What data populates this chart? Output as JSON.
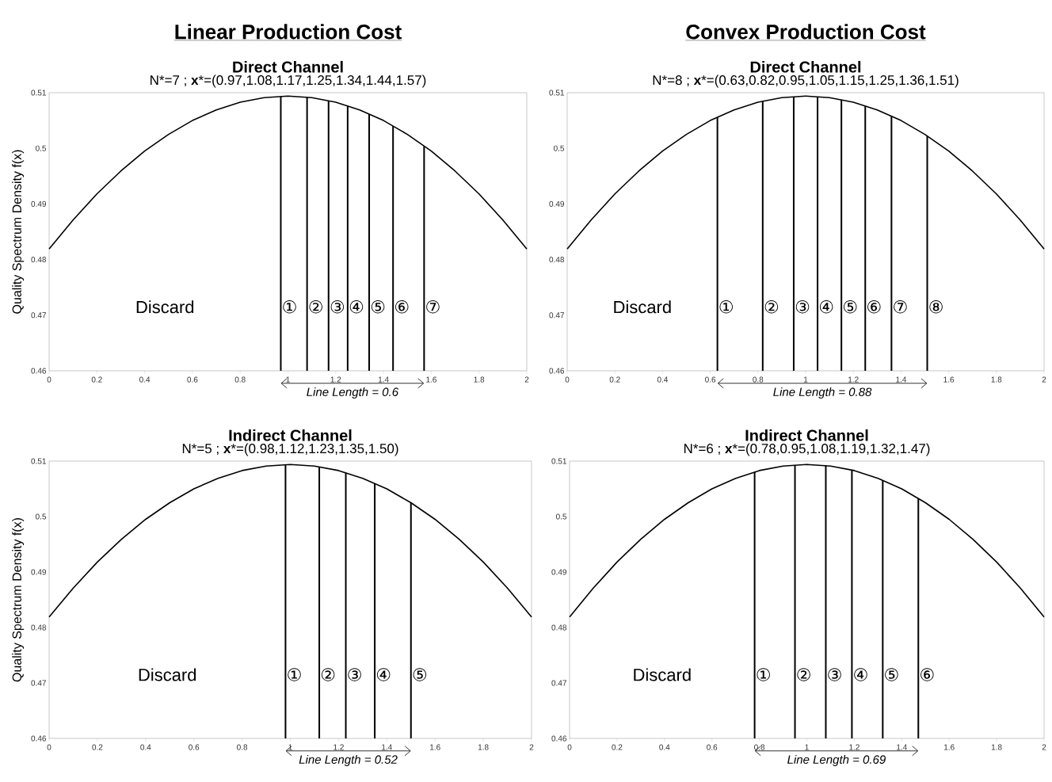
{
  "chart_data": [
    {
      "type": "line",
      "title": "Direct Channel",
      "subtitle": "N*=7 ; **x***=(0.97,1.08,1.17,1.25,1.34,1.44,1.57)",
      "ylabel": "Quality Spectrum Density f(x)",
      "x": [
        0,
        0.1,
        0.2,
        0.3,
        0.4,
        0.5,
        0.6,
        0.7,
        0.8,
        0.9,
        1,
        1.1,
        1.2,
        1.3,
        1.4,
        1.5,
        1.6,
        1.7,
        1.8,
        1.9,
        2
      ],
      "values": [
        0.4819,
        0.4871,
        0.4918,
        0.4959,
        0.4995,
        0.5025,
        0.505,
        0.5069,
        0.5083,
        0.5091,
        0.5094,
        0.5091,
        0.5083,
        0.5069,
        0.505,
        0.5025,
        0.4995,
        0.4959,
        0.4918,
        0.4871,
        0.4819
      ],
      "color": "#000000",
      "xlim": [
        0,
        2
      ],
      "ylim": [
        0.46,
        0.51
      ],
      "xticks": [
        0,
        0.2,
        0.4,
        0.6,
        0.8,
        1,
        1.2,
        1.4,
        1.6,
        1.8,
        2
      ],
      "yticks": [
        0.46,
        0.47,
        0.48,
        0.49,
        0.5,
        0.51
      ],
      "ref_lines": [
        {
          "axis": "x",
          "value": 0.97,
          "label": "①"
        },
        {
          "axis": "x",
          "value": 1.08,
          "label": "②"
        },
        {
          "axis": "x",
          "value": 1.17,
          "label": "③"
        },
        {
          "axis": "x",
          "value": 1.25,
          "label": "④"
        },
        {
          "axis": "x",
          "value": 1.34,
          "label": "⑤"
        },
        {
          "axis": "x",
          "value": 1.44,
          "label": "⑥"
        },
        {
          "axis": "x",
          "value": 1.57,
          "label": "⑦"
        }
      ],
      "annotations": [
        "Linear Production Cost",
        "Discard",
        "Line Length = 0.6"
      ]
    },
    {
      "type": "line",
      "title": "Direct Channel",
      "subtitle": "N*=8 ; **x***=(0.63,0.82,0.95,1.05,1.15,1.25,1.36,1.51)",
      "x": [
        0,
        0.1,
        0.2,
        0.3,
        0.4,
        0.5,
        0.6,
        0.7,
        0.8,
        0.9,
        1,
        1.1,
        1.2,
        1.3,
        1.4,
        1.5,
        1.6,
        1.7,
        1.8,
        1.9,
        2
      ],
      "values": [
        0.4819,
        0.4871,
        0.4918,
        0.4959,
        0.4995,
        0.5025,
        0.505,
        0.5069,
        0.5083,
        0.5091,
        0.5094,
        0.5091,
        0.5083,
        0.5069,
        0.505,
        0.5025,
        0.4995,
        0.4959,
        0.4918,
        0.4871,
        0.4819
      ],
      "color": "#000000",
      "xlim": [
        0,
        2
      ],
      "ylim": [
        0.46,
        0.51
      ],
      "xticks": [
        0,
        0.2,
        0.4,
        0.6,
        0.8,
        1,
        1.2,
        1.4,
        1.6,
        1.8,
        2
      ],
      "yticks": [
        0.46,
        0.47,
        0.48,
        0.49,
        0.5,
        0.51
      ],
      "ref_lines": [
        {
          "axis": "x",
          "value": 0.63,
          "label": "①"
        },
        {
          "axis": "x",
          "value": 0.82,
          "label": "②"
        },
        {
          "axis": "x",
          "value": 0.95,
          "label": "③"
        },
        {
          "axis": "x",
          "value": 1.05,
          "label": "④"
        },
        {
          "axis": "x",
          "value": 1.15,
          "label": "⑤"
        },
        {
          "axis": "x",
          "value": 1.25,
          "label": "⑥"
        },
        {
          "axis": "x",
          "value": 1.36,
          "label": "⑦"
        },
        {
          "axis": "x",
          "value": 1.51,
          "label": "⑧"
        }
      ],
      "annotations": [
        "Convex Production Cost",
        "Discard",
        "Line Length = 0.88"
      ]
    },
    {
      "type": "line",
      "title": "Indirect Channel",
      "subtitle": "N*=5 ; **x***=(0.98,1.12,1.23,1.35,1.50)",
      "ylabel": "Quality Spectrum Density f(x)",
      "x": [
        0,
        0.1,
        0.2,
        0.3,
        0.4,
        0.5,
        0.6,
        0.7,
        0.8,
        0.9,
        1,
        1.1,
        1.2,
        1.3,
        1.4,
        1.5,
        1.6,
        1.7,
        1.8,
        1.9,
        2
      ],
      "values": [
        0.4819,
        0.4871,
        0.4918,
        0.4959,
        0.4995,
        0.5025,
        0.505,
        0.5069,
        0.5083,
        0.5091,
        0.5094,
        0.5091,
        0.5083,
        0.5069,
        0.505,
        0.5025,
        0.4995,
        0.4959,
        0.4918,
        0.4871,
        0.4819
      ],
      "color": "#000000",
      "xlim": [
        0,
        2
      ],
      "ylim": [
        0.46,
        0.51
      ],
      "xticks": [
        0,
        0.2,
        0.4,
        0.6,
        0.8,
        1,
        1.2,
        1.4,
        1.6,
        1.8,
        2
      ],
      "yticks": [
        0.46,
        0.47,
        0.48,
        0.49,
        0.5,
        0.51
      ],
      "ref_lines": [
        {
          "axis": "x",
          "value": 0.98,
          "label": "①"
        },
        {
          "axis": "x",
          "value": 1.12,
          "label": "②"
        },
        {
          "axis": "x",
          "value": 1.23,
          "label": "③"
        },
        {
          "axis": "x",
          "value": 1.35,
          "label": "④"
        },
        {
          "axis": "x",
          "value": 1.5,
          "label": "⑤"
        }
      ],
      "annotations": [
        "Discard",
        "Line Length = 0.52"
      ]
    },
    {
      "type": "line",
      "title": "Indirect Channel",
      "subtitle": "N*=6 ; **x***=(0.78,0.95,1.08,1.19,1.32,1.47)",
      "x": [
        0,
        0.1,
        0.2,
        0.3,
        0.4,
        0.5,
        0.6,
        0.7,
        0.8,
        0.9,
        1,
        1.1,
        1.2,
        1.3,
        1.4,
        1.5,
        1.6,
        1.7,
        1.8,
        1.9,
        2
      ],
      "values": [
        0.4819,
        0.4871,
        0.4918,
        0.4959,
        0.4995,
        0.5025,
        0.505,
        0.5069,
        0.5083,
        0.5091,
        0.5094,
        0.5091,
        0.5083,
        0.5069,
        0.505,
        0.5025,
        0.4995,
        0.4959,
        0.4918,
        0.4871,
        0.4819
      ],
      "color": "#000000",
      "xlim": [
        0,
        2
      ],
      "ylim": [
        0.46,
        0.51
      ],
      "xticks": [
        0,
        0.2,
        0.4,
        0.6,
        0.8,
        1,
        1.2,
        1.4,
        1.6,
        1.8,
        2
      ],
      "yticks": [
        0.46,
        0.47,
        0.48,
        0.49,
        0.5,
        0.51
      ],
      "ref_lines": [
        {
          "axis": "x",
          "value": 0.78,
          "label": "①"
        },
        {
          "axis": "x",
          "value": 0.95,
          "label": "②"
        },
        {
          "axis": "x",
          "value": 1.08,
          "label": "③"
        },
        {
          "axis": "x",
          "value": 1.19,
          "label": "④"
        },
        {
          "axis": "x",
          "value": 1.32,
          "label": "⑤"
        },
        {
          "axis": "x",
          "value": 1.47,
          "label": "⑥"
        }
      ],
      "annotations": [
        "Discard",
        "Line Length = 0.69"
      ]
    }
  ]
}
